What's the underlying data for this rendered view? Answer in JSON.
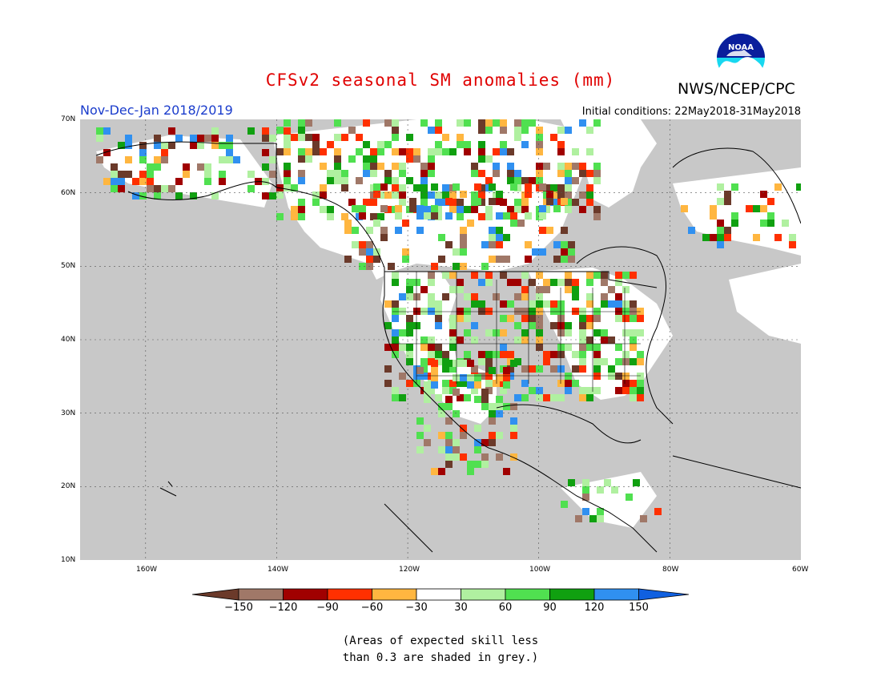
{
  "title": "CFSv2 seasonal SM anomalies (mm)",
  "agency": "NWS/NCEP/CPC",
  "logo_text": "NOAA",
  "period": "Nov-Dec-Jan 2018/2019",
  "initial_conditions": "Initial conditions: 22May2018-31May2018",
  "lat_labels": [
    "70N",
    "60N",
    "50N",
    "40N",
    "30N",
    "20N",
    "10N"
  ],
  "lon_labels": [
    "160W",
    "140W",
    "120W",
    "100W",
    "80W",
    "60W"
  ],
  "colorbar": {
    "ticks": [
      "−150",
      "−120",
      "−90",
      "−60",
      "−30",
      "30",
      "60",
      "90",
      "120",
      "150"
    ],
    "colors": [
      "#6b3a2a",
      "#a07868",
      "#a00000",
      "#ff3000",
      "#ffb640",
      "#ffffff",
      "#b0f0a0",
      "#50e050",
      "#10a010",
      "#3090f0",
      "#1060e0"
    ]
  },
  "colors": {
    "no_skill_grey": "#c8c8c8",
    "land_white": "#ffffff",
    "title_red": "#e00000",
    "period_blue": "#1a3ccc"
  },
  "footnote": {
    "line1": "(Areas of expected skill less",
    "line2": "than 0.3 are shaded in grey.)"
  }
}
